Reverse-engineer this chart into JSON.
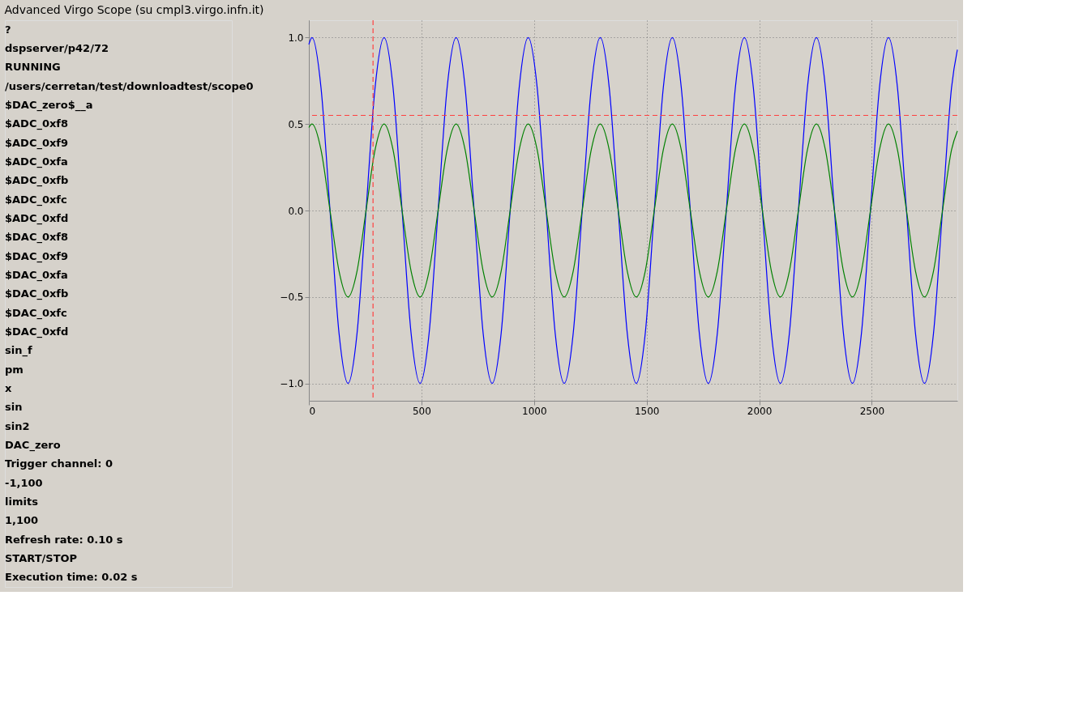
{
  "chart_data": {
    "type": "line",
    "title": "Advanced Virgo Scope (su cmpl3.virgo.infn.it)",
    "annotations": [
      "?",
      "dspserver/p42/72",
      "RUNNING",
      "/users/cerretan/test/downloadtest/scope0",
      "$DAC_zero$__a",
      "$ADC_0xf8",
      "$ADC_0xf9",
      "$ADC_0xfa",
      "$ADC_0xfb",
      "$ADC_0xfc",
      "$ADC_0xfd",
      "$DAC_0xf8",
      "$DAC_0xf9",
      "$DAC_0xfa",
      "$DAC_0xfb",
      "$DAC_0xfc",
      "$DAC_0xfd",
      "sin_f",
      "pm",
      "x",
      "sin",
      "sin2",
      "DAC_zero",
      "Trigger channel: 0",
      "-1,100",
      "limits",
      "1,100",
      "Refresh rate: 0.10 s",
      "START/STOP",
      "Execution time: 0.02 s"
    ],
    "x": [
      0,
      14,
      54,
      94,
      134,
      174,
      214,
      254,
      294,
      334,
      374,
      414,
      454,
      494,
      534,
      574,
      614,
      654,
      694,
      734,
      774,
      814,
      854,
      894,
      934,
      974,
      1014,
      1054,
      1094,
      1134,
      1174,
      1214,
      1254,
      1294,
      1334,
      1374,
      1414,
      1454,
      1494,
      1534,
      1574,
      1614,
      1654,
      1694,
      1734,
      1774,
      1814,
      1854,
      1894,
      1934,
      1974,
      2014,
      2054,
      2094,
      2134,
      2174,
      2214,
      2254,
      2294,
      2334,
      2374,
      2414,
      2454,
      2494,
      2534,
      2574,
      2614,
      2654,
      2694,
      2734,
      2774,
      2814,
      2854,
      2880
    ],
    "series": [
      {
        "color": "#0000ff",
        "values": [
          0.96,
          1,
          0.71,
          0,
          -0.71,
          -1,
          -0.71,
          0,
          0.71,
          1,
          0.71,
          0,
          -0.71,
          -1,
          -0.71,
          0,
          0.71,
          1,
          0.71,
          0,
          -0.71,
          -1,
          -0.71,
          0,
          0.71,
          1,
          0.71,
          0,
          -0.71,
          -1,
          -0.71,
          0,
          0.71,
          1,
          0.71,
          0,
          -0.71,
          -1,
          -0.71,
          0,
          0.71,
          1,
          0.71,
          0,
          -0.71,
          -1,
          -0.71,
          0,
          0.71,
          1,
          0.71,
          0,
          -0.71,
          -1,
          -0.71,
          0,
          0.71,
          1,
          0.71,
          0,
          -0.71,
          -1,
          -0.71,
          0,
          0.71,
          1,
          0.71,
          0,
          -0.71,
          -1,
          -0.71,
          0,
          0.71,
          0.93
        ]
      },
      {
        "color": "#008000",
        "values": [
          0.48,
          0.5,
          0.35,
          0,
          -0.35,
          -0.5,
          -0.35,
          0,
          0.35,
          0.5,
          0.35,
          0,
          -0.35,
          -0.5,
          -0.35,
          0,
          0.35,
          0.5,
          0.35,
          0,
          -0.35,
          -0.5,
          -0.35,
          0,
          0.35,
          0.5,
          0.35,
          0,
          -0.35,
          -0.5,
          -0.35,
          0,
          0.35,
          0.5,
          0.35,
          0,
          -0.35,
          -0.5,
          -0.35,
          0,
          0.35,
          0.5,
          0.35,
          0,
          -0.35,
          -0.5,
          -0.35,
          0,
          0.35,
          0.5,
          0.35,
          0,
          -0.35,
          -0.5,
          -0.35,
          0,
          0.35,
          0.5,
          0.35,
          0,
          -0.35,
          -0.5,
          -0.35,
          0,
          0.35,
          0.5,
          0.35,
          0,
          -0.35,
          -0.5,
          -0.35,
          0,
          0.35,
          0.46
        ]
      }
    ],
    "xlim": [
      0,
      2880
    ],
    "xticks": [
      0,
      500,
      1000,
      1500,
      2000,
      2500
    ],
    "ylim": [
      -1.1,
      1.1
    ],
    "yticks": [
      {
        "value": -1,
        "label": "−1.0"
      },
      {
        "value": -0.5,
        "label": "−0.5"
      },
      {
        "value": 0,
        "label": "0.0"
      },
      {
        "value": 0.5,
        "label": "0.5"
      },
      {
        "value": 1,
        "label": "1.0"
      }
    ],
    "ref_lines": [
      {
        "axis": "x",
        "value": 285,
        "color": "#ff4040",
        "line_style": "dashed"
      },
      {
        "axis": "y",
        "value": 0.55,
        "color": "#ff4040",
        "line_style": "dashed"
      }
    ],
    "grid": true,
    "legend": false
  }
}
